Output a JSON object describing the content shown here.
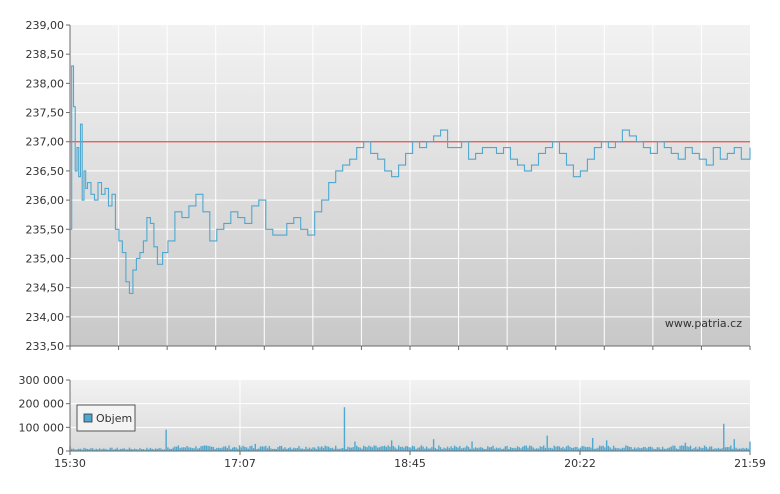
{
  "chart_data": [
    {
      "type": "line",
      "name": "price",
      "y_tick_labels": [
        "239,00",
        "238,50",
        "238,00",
        "237,50",
        "237,00",
        "236,50",
        "236,00",
        "235,50",
        "235,00",
        "234,50",
        "234,00",
        "233,50"
      ],
      "ylim": [
        233.5,
        239.0
      ],
      "xlim_minutes": [
        930,
        1319
      ],
      "reference_line": {
        "value": 237.0,
        "color": "#e05050"
      },
      "watermark": "www.patria.cz",
      "line_color": "#4fa8d0",
      "x": [
        930,
        931,
        932,
        933,
        934,
        935,
        936,
        937,
        938,
        939,
        940,
        942,
        944,
        946,
        948,
        950,
        952,
        954,
        956,
        958,
        960,
        962,
        964,
        966,
        968,
        970,
        972,
        974,
        976,
        978,
        980,
        983,
        986,
        990,
        994,
        998,
        1002,
        1006,
        1010,
        1014,
        1018,
        1022,
        1026,
        1030,
        1034,
        1038,
        1042,
        1046,
        1050,
        1054,
        1058,
        1062,
        1066,
        1070,
        1074,
        1078,
        1082,
        1086,
        1090,
        1094,
        1098,
        1102,
        1106,
        1110,
        1114,
        1118,
        1122,
        1126,
        1130,
        1134,
        1138,
        1142,
        1146,
        1150,
        1154,
        1158,
        1162,
        1166,
        1170,
        1174,
        1178,
        1182,
        1186,
        1190,
        1194,
        1198,
        1202,
        1206,
        1210,
        1214,
        1218,
        1222,
        1226,
        1230,
        1234,
        1238,
        1242,
        1246,
        1250,
        1254,
        1258,
        1262,
        1266,
        1270,
        1274,
        1278,
        1282,
        1286,
        1290,
        1294,
        1298,
        1302,
        1306,
        1310,
        1314,
        1319
      ],
      "y": [
        235.5,
        238.3,
        237.6,
        236.5,
        236.9,
        236.4,
        237.3,
        236.0,
        236.5,
        236.2,
        236.3,
        236.1,
        236.0,
        236.3,
        236.1,
        236.2,
        235.9,
        236.1,
        235.5,
        235.3,
        235.1,
        234.6,
        234.4,
        234.8,
        235.0,
        235.1,
        235.3,
        235.7,
        235.6,
        235.2,
        234.9,
        235.1,
        235.3,
        235.8,
        235.7,
        235.9,
        236.1,
        235.8,
        235.3,
        235.5,
        235.6,
        235.8,
        235.7,
        235.6,
        235.9,
        236.0,
        235.5,
        235.4,
        235.4,
        235.6,
        235.7,
        235.5,
        235.4,
        235.8,
        236.0,
        236.3,
        236.5,
        236.6,
        236.7,
        236.9,
        237.0,
        236.8,
        236.7,
        236.5,
        236.4,
        236.6,
        236.8,
        237.0,
        236.9,
        237.0,
        237.1,
        237.2,
        236.9,
        236.9,
        237.0,
        236.7,
        236.8,
        236.9,
        236.9,
        236.8,
        236.9,
        236.7,
        236.6,
        236.5,
        236.6,
        236.8,
        236.9,
        237.0,
        236.8,
        236.6,
        236.4,
        236.5,
        236.7,
        236.9,
        237.0,
        236.9,
        237.0,
        237.2,
        237.1,
        237.0,
        236.9,
        236.8,
        237.0,
        236.9,
        236.8,
        236.7,
        236.9,
        236.8,
        236.7,
        236.6,
        236.9,
        236.7,
        236.8,
        236.9,
        236.7,
        236.9
      ]
    },
    {
      "type": "bar",
      "name": "volume",
      "legend": "Objem",
      "y_tick_labels": [
        "300 000",
        "200 000",
        "100 000",
        "0"
      ],
      "ylim": [
        0,
        300000
      ],
      "x_tick_labels": [
        "15:30",
        "17:07",
        "18:45",
        "20:22",
        "21:59"
      ],
      "bar_color": "#4fa8d0",
      "spikes": [
        {
          "minute": 930,
          "value": 20000
        },
        {
          "minute": 985,
          "value": 90000
        },
        {
          "minute": 1036,
          "value": 30000
        },
        {
          "minute": 1087,
          "value": 185000
        },
        {
          "minute": 1093,
          "value": 40000
        },
        {
          "minute": 1114,
          "value": 45000
        },
        {
          "minute": 1138,
          "value": 50000
        },
        {
          "minute": 1160,
          "value": 40000
        },
        {
          "minute": 1203,
          "value": 65000
        },
        {
          "minute": 1229,
          "value": 55000
        },
        {
          "minute": 1237,
          "value": 45000
        },
        {
          "minute": 1282,
          "value": 35000
        },
        {
          "minute": 1304,
          "value": 115000
        },
        {
          "minute": 1310,
          "value": 50000
        },
        {
          "minute": 1319,
          "value": 40000
        }
      ],
      "baseline_range": [
        8000,
        24000
      ]
    }
  ]
}
